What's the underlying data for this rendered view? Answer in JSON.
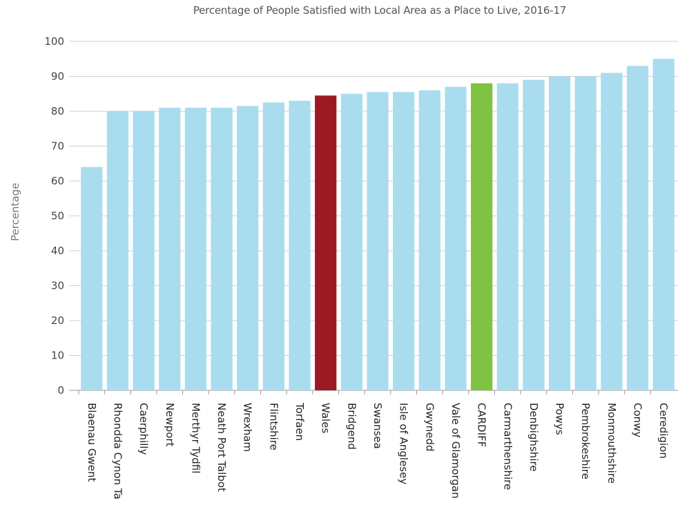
{
  "chart_data": {
    "type": "bar",
    "title": "Percentage of People Satisfied with Local Area as a Place to Live, 2016-17",
    "xlabel": "",
    "ylabel": "Percentage",
    "ylim": [
      0,
      100
    ],
    "yticks": [
      0,
      10,
      20,
      30,
      40,
      50,
      60,
      70,
      80,
      90,
      100
    ],
    "grid": true,
    "categories": [
      "Blaenau Gwent",
      "Rhondda Cynon Ta",
      "Caerphilly",
      "Newport",
      "Merthyr Tydfil",
      "Neath Port Talbot",
      "Wrexham",
      "Flintshire",
      "Torfaen",
      "Wales",
      "Bridgend",
      "Swansea",
      "Isle of Anglesey",
      "Gwynedd",
      "Vale of Glamorgan",
      "CARDIFF",
      "Carmarthenshire",
      "Denbighshire",
      "Powys",
      "Pembrokeshire",
      "Monmouthshire",
      "Conwy",
      "Ceredigion"
    ],
    "values": [
      64,
      80,
      80,
      81,
      81,
      81,
      81.5,
      82.5,
      83,
      84.5,
      85,
      85.5,
      85.5,
      86,
      87,
      88,
      88,
      89,
      90,
      90,
      91,
      93,
      95
    ],
    "colors": {
      "default": "#aadcf0",
      "Wales": "#9b1a23",
      "CARDIFF": "#80c342"
    }
  }
}
